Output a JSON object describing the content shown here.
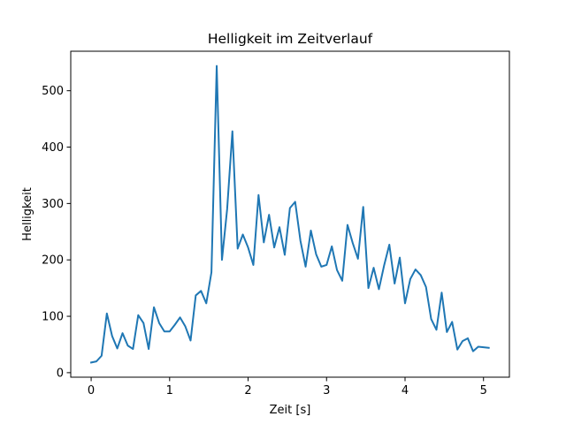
{
  "chart_data": {
    "type": "line",
    "title": "Helligkeit im Zeitverlauf",
    "xlabel": "Zeit [s]",
    "ylabel": "Helligkeit",
    "xlim": [
      -0.26,
      5.33
    ],
    "ylim": [
      -8,
      570
    ],
    "xticks": [
      0,
      1,
      2,
      3,
      4,
      5
    ],
    "xtick_labels": [
      "0",
      "1",
      "2",
      "3",
      "4",
      "5"
    ],
    "yticks": [
      0,
      100,
      200,
      300,
      400,
      500
    ],
    "ytick_labels": [
      "0",
      "100",
      "200",
      "300",
      "400",
      "500"
    ],
    "grid": false,
    "series": [
      {
        "color": "#1f77b4",
        "x": [
          0.0,
          0.067,
          0.133,
          0.2,
          0.267,
          0.333,
          0.4,
          0.467,
          0.533,
          0.6,
          0.667,
          0.733,
          0.8,
          0.867,
          0.933,
          1.0,
          1.067,
          1.133,
          1.2,
          1.267,
          1.333,
          1.4,
          1.467,
          1.533,
          1.6,
          1.667,
          1.733,
          1.8,
          1.867,
          1.933,
          2.0,
          2.067,
          2.133,
          2.2,
          2.267,
          2.333,
          2.4,
          2.467,
          2.533,
          2.6,
          2.667,
          2.733,
          2.8,
          2.867,
          2.933,
          3.0,
          3.067,
          3.133,
          3.2,
          3.267,
          3.333,
          3.4,
          3.467,
          3.533,
          3.6,
          3.667,
          3.733,
          3.8,
          3.867,
          3.933,
          4.0,
          4.067,
          4.133,
          4.2,
          4.267,
          4.333,
          4.4,
          4.467,
          4.533,
          4.6,
          4.667,
          4.733,
          4.8,
          4.867,
          4.933,
          5.0,
          5.067
        ],
        "y": [
          18,
          20,
          30,
          105,
          65,
          43,
          70,
          48,
          42,
          102,
          88,
          42,
          116,
          88,
          73,
          73,
          85,
          98,
          82,
          57,
          137,
          145,
          123,
          178,
          544,
          200,
          290,
          428,
          220,
          245,
          222,
          191,
          315,
          231,
          280,
          222,
          258,
          209,
          292,
          303,
          234,
          188,
          252,
          210,
          188,
          191,
          224,
          182,
          163,
          262,
          230,
          202,
          294,
          150,
          186,
          148,
          190,
          227,
          158,
          204,
          123,
          166,
          183,
          173,
          152,
          95,
          76,
          142,
          72,
          90,
          41,
          56,
          61,
          38,
          46,
          45,
          44
        ]
      }
    ]
  }
}
